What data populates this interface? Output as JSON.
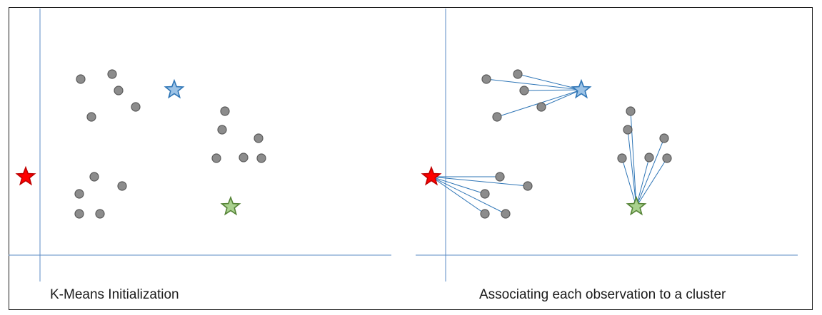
{
  "panels": [
    {
      "caption": "K-Means Initialization",
      "show_links": false,
      "points": [
        [
          113,
          111
        ],
        [
          157,
          104
        ],
        [
          166,
          127
        ],
        [
          190,
          150
        ],
        [
          128,
          164
        ],
        [
          315,
          156
        ],
        [
          311,
          182
        ],
        [
          362,
          194
        ],
        [
          303,
          222
        ],
        [
          341,
          221
        ],
        [
          366,
          222
        ],
        [
          132,
          248
        ],
        [
          171,
          261
        ],
        [
          111,
          272
        ],
        [
          111,
          300
        ],
        [
          140,
          300
        ]
      ],
      "centroids": [
        {
          "name": "blue-centroid",
          "pos": [
            244,
            126
          ],
          "color": "#2e75b6",
          "fill": "#9dc3e6",
          "points": []
        },
        {
          "name": "red-centroid",
          "pos": [
            36,
            248
          ],
          "color": "#c00000",
          "fill": "#ff0000",
          "points": []
        },
        {
          "name": "green-centroid",
          "pos": [
            323,
            290
          ],
          "color": "#548235",
          "fill": "#a9d18e",
          "points": []
        }
      ]
    },
    {
      "caption": "Associating each observation to a cluster",
      "show_links": true,
      "points": [
        [
          681,
          111
        ],
        [
          725,
          104
        ],
        [
          734,
          127
        ],
        [
          758,
          150
        ],
        [
          696,
          164
        ],
        [
          883,
          156
        ],
        [
          879,
          182
        ],
        [
          930,
          194
        ],
        [
          871,
          222
        ],
        [
          909,
          221
        ],
        [
          934,
          222
        ],
        [
          700,
          248
        ],
        [
          739,
          261
        ],
        [
          679,
          272
        ],
        [
          679,
          300
        ],
        [
          708,
          300
        ]
      ],
      "centroids": [
        {
          "name": "blue-centroid",
          "pos": [
            814,
            126
          ],
          "color": "#2e75b6",
          "fill": "#9dc3e6",
          "points": [
            0,
            1,
            2,
            3,
            4
          ]
        },
        {
          "name": "red-centroid",
          "pos": [
            604,
            248
          ],
          "color": "#c00000",
          "fill": "#ff0000",
          "points": [
            11,
            12,
            13,
            14,
            15
          ]
        },
        {
          "name": "green-centroid",
          "pos": [
            891,
            290
          ],
          "color": "#548235",
          "fill": "#a9d18e",
          "points": [
            5,
            6,
            7,
            8,
            9,
            10
          ]
        }
      ]
    }
  ],
  "colors": {
    "axis": "#5b8bc5",
    "link": "#2e75b6",
    "point_fill": "#8c8c8c",
    "point_stroke": "#595959"
  }
}
